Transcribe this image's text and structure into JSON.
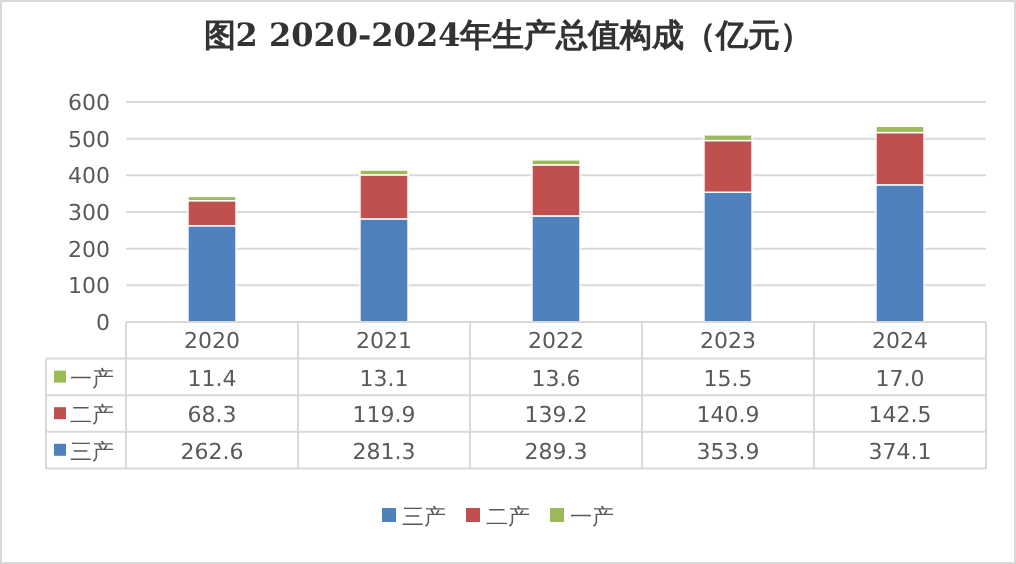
{
  "chart_data": {
    "type": "bar",
    "title": "图2  2020-2024年生产总值构成（亿元）",
    "categories": [
      "2020",
      "2021",
      "2022",
      "2023",
      "2024"
    ],
    "series": [
      {
        "name": "三产",
        "color": "#4f81bd",
        "values": [
          262.6,
          281.3,
          289.3,
          353.9,
          374.1
        ],
        "value_labels": [
          "262.6",
          "281.3",
          "289.3",
          "353.9",
          "374.1"
        ]
      },
      {
        "name": "二产",
        "color": "#c0504d",
        "values": [
          68.3,
          119.9,
          139.2,
          140.9,
          142.5
        ],
        "value_labels": [
          "68.3",
          "119.9",
          "139.2",
          "140.9",
          "142.5"
        ]
      },
      {
        "name": "一产",
        "color": "#9bbb59",
        "values": [
          11.4,
          13.1,
          13.6,
          15.5,
          17.0
        ],
        "value_labels": [
          "11.4",
          "13.1",
          "13.6",
          "15.5",
          "17.0"
        ]
      }
    ],
    "stacked": true,
    "ylim": [
      0,
      600
    ],
    "yticks": [
      0,
      100,
      200,
      300,
      400,
      500,
      600
    ],
    "grid": "y",
    "legend": "bottom"
  }
}
